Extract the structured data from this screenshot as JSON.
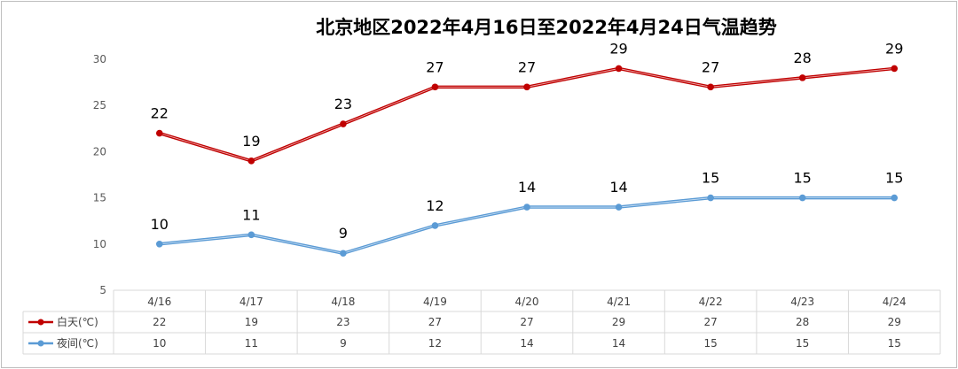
{
  "chart_data": {
    "type": "line",
    "title": "北京地区2022年4月16日至2022年4月24日气温趋势",
    "categories": [
      "4/16",
      "4/17",
      "4/18",
      "4/19",
      "4/20",
      "4/21",
      "4/22",
      "4/23",
      "4/24"
    ],
    "series": [
      {
        "name": "白天(℃)",
        "color": "#c00000",
        "values": [
          22,
          19,
          23,
          27,
          27,
          29,
          27,
          28,
          29
        ]
      },
      {
        "name": "夜间(℃)",
        "color": "#5b9bd5",
        "values": [
          10,
          11,
          9,
          12,
          14,
          14,
          15,
          15,
          15
        ]
      }
    ],
    "ylim": [
      5,
      30
    ],
    "yticks": [
      5,
      10,
      15,
      20,
      25,
      30
    ],
    "grid": false,
    "data_labels": true,
    "legend": "data-table-left"
  }
}
